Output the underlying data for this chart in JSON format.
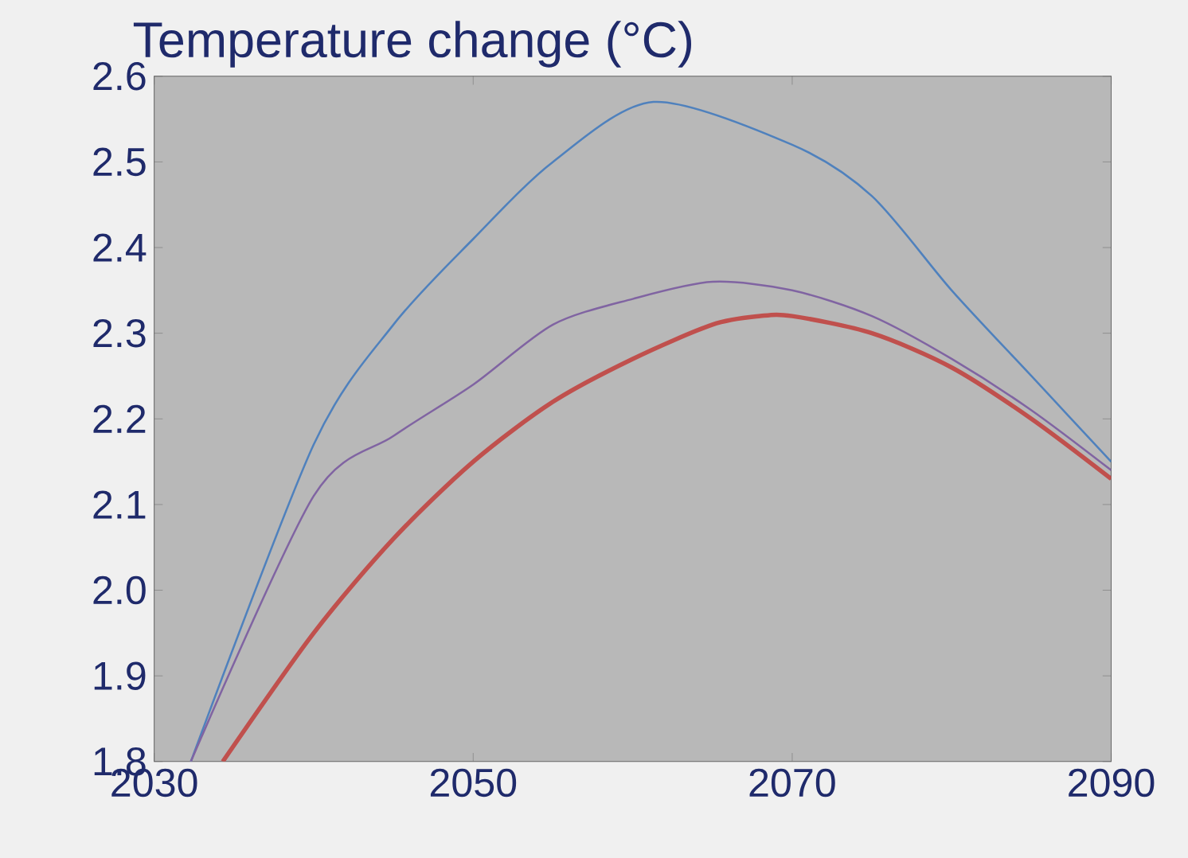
{
  "chart_data": {
    "type": "line",
    "title": "Temperature change (°C)",
    "xlim": [
      2030,
      2090
    ],
    "xticks": [
      2030,
      2050,
      2070,
      2090
    ],
    "ylim": [
      1.8,
      2.6
    ],
    "yticks": [
      {
        "value": 1.8,
        "label": "1.8"
      },
      {
        "value": 1.9,
        "label": "1.9"
      },
      {
        "value": 2.0,
        "label": "2.0"
      },
      {
        "value": 2.1,
        "label": "2.1"
      },
      {
        "value": 2.2,
        "label": "2.2"
      },
      {
        "value": 2.3,
        "label": "2.3"
      },
      {
        "value": 2.4,
        "label": "2.4"
      },
      {
        "value": 2.5,
        "label": "2.5"
      },
      {
        "value": 2.6,
        "label": "2.6"
      }
    ],
    "grid": false,
    "marker": "none",
    "line_style": "solid",
    "series": [
      {
        "color": "#4f81bd",
        "x": [
          2032.3,
          2040,
          2045,
          2050,
          2055,
          2061.3,
          2070,
          2075,
          2080,
          2085,
          2090
        ],
        "values": [
          1.8,
          2.17,
          2.31,
          2.41,
          2.5,
          2.57,
          2.52,
          2.46,
          2.35,
          2.25,
          2.15
        ]
      },
      {
        "color": "#8064a2",
        "x": [
          2032.3,
          2040,
          2045,
          2050,
          2055,
          2060,
          2065,
          2070,
          2075,
          2080,
          2085,
          2090
        ],
        "values": [
          1.8,
          2.11,
          2.18,
          2.24,
          2.31,
          2.34,
          2.36,
          2.35,
          2.32,
          2.27,
          2.21,
          2.14
        ]
      },
      {
        "color": "#c0504d",
        "x": [
          2034.3,
          2040,
          2045,
          2050,
          2055,
          2060,
          2065,
          2068,
          2070,
          2075,
          2080,
          2085,
          2090
        ],
        "values": [
          1.8,
          1.95,
          2.06,
          2.15,
          2.22,
          2.27,
          2.31,
          2.32,
          2.32,
          2.3,
          2.26,
          2.2,
          2.13
        ]
      }
    ]
  }
}
